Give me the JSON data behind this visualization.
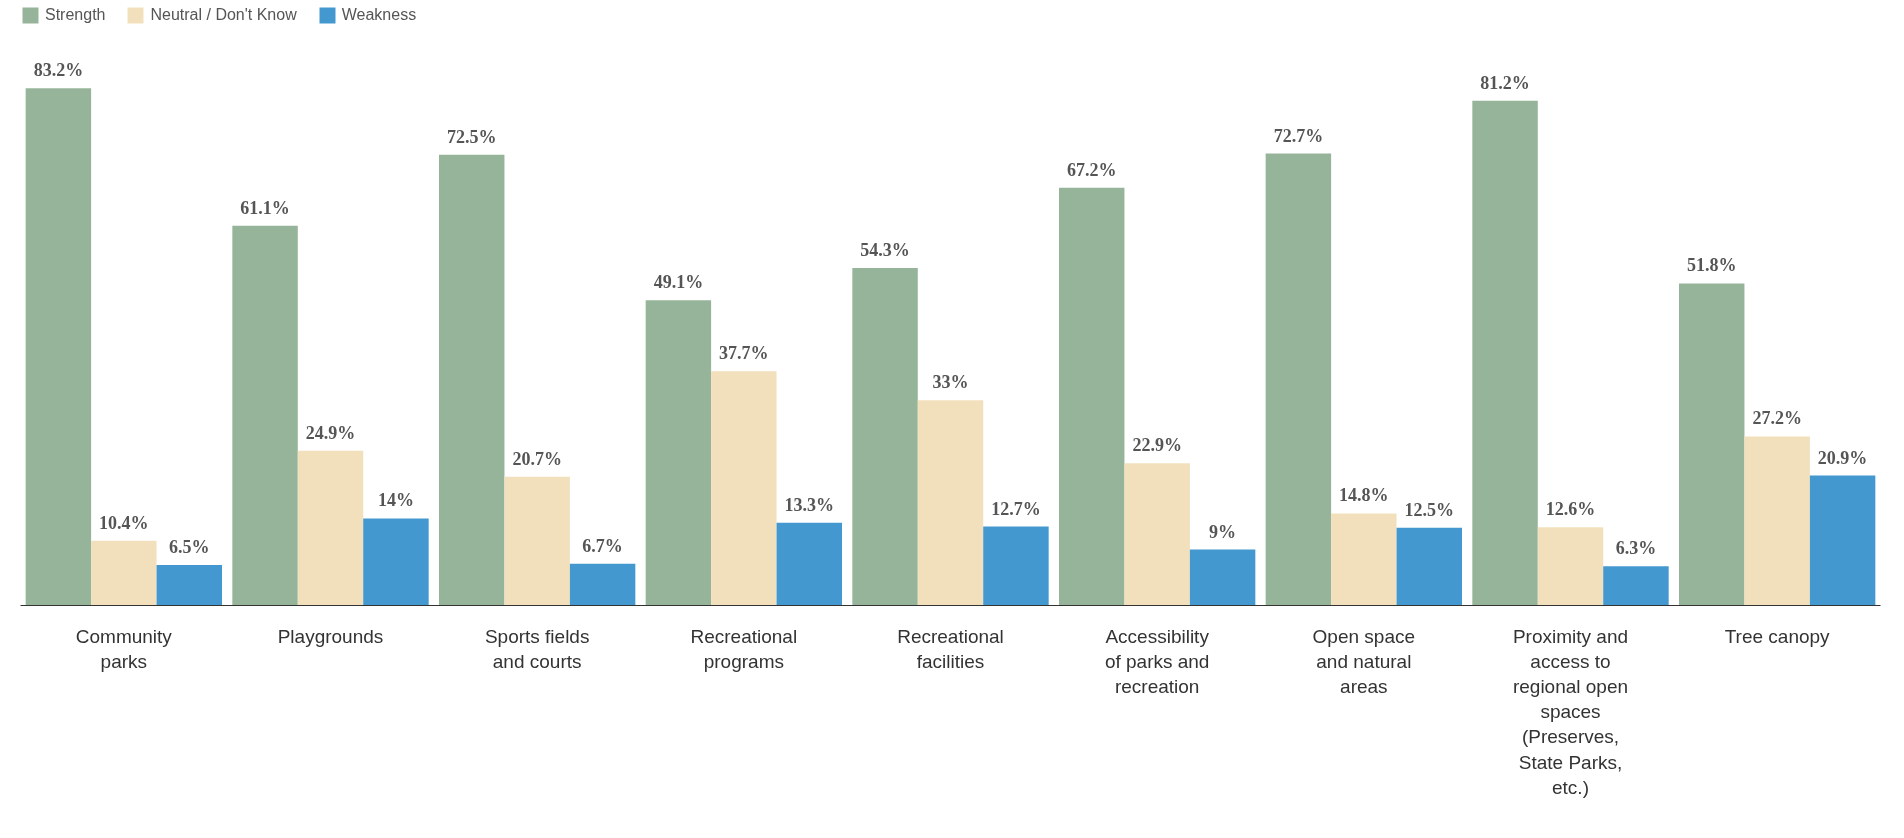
{
  "chart_data": {
    "type": "bar",
    "categories": [
      "Community parks",
      "Playgrounds",
      "Sports fields and courts",
      "Recreational programs",
      "Recreational facilities",
      "Accessibility of parks and recreation",
      "Open space and natural areas",
      "Proximity and access to regional open spaces (Preserves, State Parks, etc.)",
      "Tree canopy"
    ],
    "series": [
      {
        "name": "Strength",
        "color": "#96b49a",
        "values": [
          83.2,
          61.1,
          72.5,
          49.1,
          54.3,
          67.2,
          72.7,
          81.2,
          51.8
        ],
        "value_labels": [
          "83.2%",
          "61.1%",
          "72.5%",
          "49.1%",
          "54.3%",
          "67.2%",
          "72.7%",
          "81.2%",
          "51.8%"
        ]
      },
      {
        "name": "Neutral / Don't Know",
        "color": "#f2e0bc",
        "values": [
          10.4,
          24.9,
          20.7,
          37.7,
          33,
          22.9,
          14.8,
          12.6,
          27.2
        ],
        "value_labels": [
          "10.4%",
          "24.9%",
          "20.7%",
          "37.7%",
          "33%",
          "22.9%",
          "14.8%",
          "12.6%",
          "27.2%"
        ]
      },
      {
        "name": "Weakness",
        "color": "#4398cf",
        "values": [
          6.5,
          14,
          6.7,
          13.3,
          12.7,
          9,
          12.5,
          6.3,
          20.9
        ],
        "value_labels": [
          "6.5%",
          "14%",
          "6.7%",
          "13.3%",
          "12.7%",
          "9%",
          "12.5%",
          "6.3%",
          "20.9%"
        ]
      }
    ],
    "legend": "top left",
    "grid": false
  }
}
